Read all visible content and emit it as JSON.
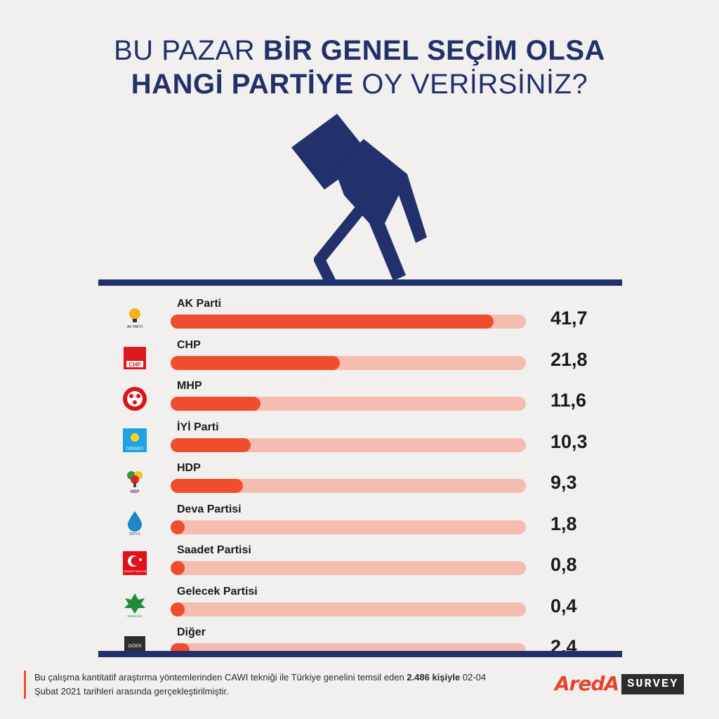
{
  "title": {
    "line1_light": "BU PAZAR ",
    "line1_bold": "BİR GENEL SEÇİM OLSA",
    "line2_bold": "HANGİ PARTİYE",
    "line2_light": " OY VERİRSİNİZ?"
  },
  "colors": {
    "accent": "#f04d2f",
    "track": "#f4bdb0",
    "navy": "#22316b"
  },
  "chart_data": {
    "type": "bar",
    "orientation": "horizontal",
    "xlim": [
      0,
      41.7
    ],
    "grid": false,
    "categories": [
      "AK Parti",
      "CHP",
      "MHP",
      "İYİ Parti",
      "HDP",
      "Deva Partisi",
      "Saadet Partisi",
      "Gelecek Partisi",
      "Diğer"
    ],
    "values": [
      41.7,
      21.8,
      11.6,
      10.3,
      9.3,
      1.8,
      0.8,
      0.4,
      2.4
    ],
    "value_labels": [
      "41,7",
      "21,8",
      "11,6",
      "10,3",
      "9,3",
      "1,8",
      "0,8",
      "0,4",
      "2,4"
    ]
  },
  "logos": [
    {
      "icon": "ak-parti-bulb-icon",
      "text": "AK PARTİ"
    },
    {
      "icon": "chp-six-arrows-icon",
      "text": "CHP"
    },
    {
      "icon": "mhp-crescents-icon",
      "text": ""
    },
    {
      "icon": "iyi-parti-sun-icon",
      "text": "İYİPARTİ"
    },
    {
      "icon": "hdp-tree-icon",
      "text": "HDP"
    },
    {
      "icon": "deva-drop-icon",
      "text": "DEVA"
    },
    {
      "icon": "saadet-crescent-star-icon",
      "text": "SAADET PARTİSİ"
    },
    {
      "icon": "gelecek-leaf-icon",
      "text": "GELECEK"
    },
    {
      "icon": "diger-box-icon",
      "text": "DİĞER"
    }
  ],
  "footer": {
    "text_1": "Bu çalışma kantitatif araştırma yöntemlerinden CAWI tekniği ile Türkiye genelini temsil eden ",
    "text_bold": "2.486 kişiyle",
    "text_2": " 02-04 Şubat 2021 tarihleri arasında gerçekleştirilmiştir."
  },
  "brand": {
    "name": "AredA",
    "tag": "SURVEY"
  }
}
